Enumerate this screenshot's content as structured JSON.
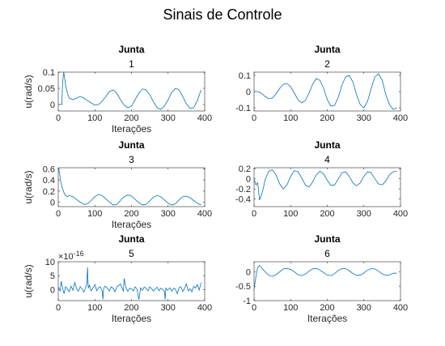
{
  "figure": {
    "title": "Sinais de Controle"
  },
  "chart_data": [
    {
      "type": "line",
      "title": [
        "Junta",
        "1"
      ],
      "xlabel": "Iterações",
      "ylabel": "u(rad/s)",
      "xlim": [
        0,
        400
      ],
      "ylim": [
        -0.02,
        0.1
      ],
      "xticks": [
        "0",
        "100",
        "200",
        "300",
        "400"
      ],
      "yticks": [
        {
          "v": 0,
          "t": "0"
        },
        {
          "v": 0.05,
          "t": "0.05"
        },
        {
          "v": 0.1,
          "t": "0.1"
        }
      ],
      "series": [
        {
          "color": "#0072bd",
          "x": [
            0,
            10,
            12,
            15,
            17,
            20,
            25,
            30,
            40,
            50,
            60,
            70,
            80,
            90,
            100,
            110,
            120,
            130,
            140,
            150,
            160,
            170,
            180,
            190,
            200,
            210,
            220,
            230,
            240,
            250,
            260,
            270,
            280,
            290,
            300,
            310,
            320,
            330,
            340,
            350,
            360,
            370,
            380,
            390
          ],
          "y": [
            0,
            0,
            0.07,
            0.1,
            0.085,
            0.06,
            0.035,
            0.02,
            0.015,
            0.02,
            0.025,
            0.02,
            0.012,
            0.005,
            -0.002,
            0,
            0.01,
            0.025,
            0.04,
            0.045,
            0.035,
            0.015,
            -0.002,
            -0.01,
            -0.005,
            0.015,
            0.035,
            0.048,
            0.045,
            0.03,
            0.008,
            -0.01,
            -0.015,
            -0.005,
            0.015,
            0.038,
            0.05,
            0.045,
            0.025,
            0.002,
            -0.012,
            -0.01,
            0.012,
            0.045
          ]
        }
      ]
    },
    {
      "type": "line",
      "title": [
        "Junta",
        "2"
      ],
      "xlabel": "",
      "ylabel": "",
      "xlim": [
        0,
        400
      ],
      "ylim": [
        -0.12,
        0.12
      ],
      "xticks": [
        "0",
        "100",
        "200",
        "300",
        "400"
      ],
      "yticks": [
        {
          "v": -0.1,
          "t": "-0.1"
        },
        {
          "v": 0,
          "t": "0"
        },
        {
          "v": 0.1,
          "t": "0.1"
        }
      ],
      "series": [
        {
          "color": "#0072bd",
          "x": [
            0,
            10,
            20,
            30,
            40,
            50,
            60,
            70,
            80,
            90,
            100,
            110,
            120,
            130,
            140,
            150,
            160,
            170,
            180,
            190,
            200,
            210,
            220,
            230,
            240,
            250,
            260,
            270,
            280,
            290,
            300,
            310,
            320,
            330,
            340,
            350,
            360,
            370,
            380,
            390
          ],
          "y": [
            0,
            0,
            -0.01,
            -0.03,
            -0.045,
            -0.04,
            -0.015,
            0.02,
            0.045,
            0.05,
            0.03,
            -0.01,
            -0.05,
            -0.07,
            -0.055,
            -0.01,
            0.045,
            0.08,
            0.07,
            0.02,
            -0.05,
            -0.09,
            -0.085,
            -0.035,
            0.04,
            0.09,
            0.1,
            0.06,
            -0.02,
            -0.08,
            -0.1,
            -0.06,
            0.02,
            0.09,
            0.11,
            0.07,
            -0.02,
            -0.08,
            -0.11,
            -0.1
          ]
        }
      ]
    },
    {
      "type": "line",
      "title": [
        "Junta",
        "3"
      ],
      "xlabel": "Iterações",
      "ylabel": "u(rad/s)",
      "xlim": [
        0,
        400
      ],
      "ylim": [
        -0.08,
        0.62
      ],
      "xticks": [
        "0",
        "100",
        "200",
        "300",
        "400"
      ],
      "yticks": [
        {
          "v": 0,
          "t": "0"
        },
        {
          "v": 0.2,
          "t": "0.2"
        },
        {
          "v": 0.4,
          "t": "0.4"
        },
        {
          "v": 0.6,
          "t": "0.6"
        }
      ],
      "series": [
        {
          "color": "#0072bd",
          "x": [
            0,
            3,
            6,
            10,
            15,
            20,
            25,
            30,
            40,
            50,
            60,
            70,
            80,
            90,
            100,
            110,
            120,
            130,
            140,
            150,
            160,
            170,
            180,
            190,
            200,
            210,
            220,
            230,
            240,
            250,
            260,
            270,
            280,
            290,
            300,
            310,
            320,
            330,
            340,
            350,
            360,
            370,
            380,
            390
          ],
          "y": [
            0.6,
            0.55,
            0.4,
            0.28,
            0.18,
            0.12,
            0.1,
            0.12,
            0.1,
            0.05,
            0,
            -0.04,
            -0.03,
            0.03,
            0.1,
            0.14,
            0.12,
            0.06,
            0,
            -0.05,
            -0.04,
            0.03,
            0.1,
            0.13,
            0.11,
            0.05,
            -0.01,
            -0.05,
            -0.04,
            0.02,
            0.09,
            0.12,
            0.1,
            0.04,
            -0.02,
            -0.05,
            -0.03,
            0.04,
            0.1,
            0.11,
            0.08,
            0.03,
            -0.02,
            -0.05
          ]
        }
      ]
    },
    {
      "type": "line",
      "title": [
        "Junta",
        "4"
      ],
      "xlabel": "",
      "ylabel": "",
      "xlim": [
        0,
        400
      ],
      "ylim": [
        -0.55,
        0.22
      ],
      "xticks": [
        "0",
        "100",
        "200",
        "300",
        "400"
      ],
      "yticks": [
        {
          "v": -0.4,
          "t": "-0.4"
        },
        {
          "v": -0.2,
          "t": "-0.2"
        },
        {
          "v": 0,
          "t": "0"
        },
        {
          "v": 0.2,
          "t": "0.2"
        }
      ],
      "series": [
        {
          "color": "#0072bd",
          "x": [
            0,
            5,
            10,
            15,
            20,
            25,
            30,
            40,
            50,
            60,
            70,
            80,
            90,
            100,
            110,
            120,
            130,
            140,
            150,
            160,
            170,
            180,
            190,
            200,
            210,
            220,
            230,
            240,
            250,
            260,
            270,
            280,
            290,
            300,
            310,
            320,
            330,
            340,
            350,
            360,
            370,
            380,
            390
          ],
          "y": [
            0,
            -0.12,
            -0.08,
            -0.42,
            -0.32,
            -0.2,
            -0.02,
            0.15,
            0.18,
            0.08,
            -0.1,
            -0.2,
            -0.12,
            0.05,
            0.16,
            0.14,
            0.02,
            -0.12,
            -0.16,
            -0.06,
            0.08,
            0.15,
            0.1,
            -0.03,
            -0.13,
            -0.12,
            0,
            0.12,
            0.14,
            0.05,
            -0.08,
            -0.14,
            -0.08,
            0.05,
            0.14,
            0.12,
            0,
            -0.1,
            -0.12,
            -0.04,
            0.08,
            0.14,
            0.15
          ]
        }
      ]
    },
    {
      "type": "line",
      "title": [
        "Junta",
        "5"
      ],
      "xlabel": "Iterações",
      "ylabel": "u(rad/s)",
      "exponent_label": "×10",
      "exponent_power": "-16",
      "xlim": [
        0,
        400
      ],
      "ylim": [
        -4,
        10
      ],
      "xticks": [
        "0",
        "100",
        "200",
        "300",
        "400"
      ],
      "yticks": [
        {
          "v": 0,
          "t": "0"
        },
        {
          "v": 5,
          "t": "5"
        },
        {
          "v": 10,
          "t": "10"
        }
      ],
      "series": [
        {
          "color": "#0072bd",
          "x": [
            0,
            5,
            8,
            12,
            16,
            20,
            25,
            30,
            35,
            40,
            45,
            50,
            55,
            60,
            65,
            70,
            75,
            78,
            80,
            82,
            85,
            90,
            95,
            100,
            105,
            110,
            115,
            120,
            122,
            124,
            128,
            135,
            140,
            145,
            150,
            155,
            160,
            165,
            170,
            175,
            178,
            180,
            185,
            190,
            195,
            200,
            205,
            210,
            215,
            220,
            225,
            230,
            235,
            240,
            245,
            250,
            255,
            260,
            265,
            270,
            275,
            280,
            285,
            290,
            292,
            294,
            298,
            305,
            310,
            315,
            320,
            325,
            330,
            335,
            340,
            345,
            350,
            355,
            360,
            365,
            370,
            375,
            380,
            385,
            390
          ],
          "y": [
            1,
            -0.5,
            3,
            0.5,
            -1.5,
            1,
            0.2,
            -0.8,
            1.2,
            -0.3,
            2.5,
            0.4,
            -0.6,
            1,
            0.3,
            -0.9,
            0.8,
            2,
            8,
            0.5,
            1.5,
            -0.5,
            0.6,
            1.8,
            -0.4,
            0.7,
            1,
            -0.6,
            -3.5,
            0.5,
            1.2,
            0.3,
            -0.5,
            1,
            0.4,
            -0.8,
            0.9,
            1.5,
            2,
            0.2,
            -0.6,
            4,
            0.6,
            -0.7,
            0.5,
            0.2,
            -0.5,
            1,
            0.1,
            -3.6,
            0.6,
            -0.3,
            0.9,
            0.4,
            -0.5,
            1,
            0.3,
            -0.6,
            0.2,
            0.8,
            -0.4,
            0.5,
            0.1,
            -0.8,
            -3.6,
            0.5,
            -0.3,
            0.6,
            -0.6,
            0.4,
            0.2,
            -1.5,
            0.6,
            1,
            -0.7,
            0.4,
            2,
            -0.5,
            0.3,
            -0.8,
            1.2,
            0.5,
            1.8,
            -0.2,
            2.5
          ]
        }
      ]
    },
    {
      "type": "line",
      "title": [
        "Junta",
        "6"
      ],
      "xlabel": "Iterações",
      "ylabel": "",
      "xlim": [
        0,
        400
      ],
      "ylim": [
        -1,
        0.35
      ],
      "xticks": [
        "0",
        "100",
        "200",
        "300",
        "400"
      ],
      "yticks": [
        {
          "v": -1,
          "t": "-1"
        },
        {
          "v": -0.5,
          "t": "-0.5"
        },
        {
          "v": 0,
          "t": "0"
        }
      ],
      "series": [
        {
          "color": "#0072bd",
          "x": [
            0,
            3,
            6,
            10,
            15,
            20,
            25,
            30,
            40,
            50,
            60,
            70,
            80,
            90,
            100,
            110,
            120,
            130,
            140,
            150,
            160,
            170,
            180,
            190,
            200,
            210,
            220,
            230,
            240,
            250,
            260,
            270,
            280,
            290,
            300,
            310,
            320,
            330,
            340,
            350,
            360,
            370,
            380,
            390
          ],
          "y": [
            -0.6,
            -0.35,
            -0.1,
            0.15,
            0.22,
            0.15,
            0.08,
            0,
            -0.12,
            -0.16,
            -0.1,
            0,
            0.1,
            0.12,
            0.08,
            0,
            -0.1,
            -0.13,
            -0.08,
            0.02,
            0.1,
            0.12,
            0.06,
            -0.03,
            -0.11,
            -0.13,
            -0.06,
            0.04,
            0.11,
            0.11,
            0.04,
            -0.06,
            -0.12,
            -0.12,
            -0.04,
            0.06,
            0.11,
            0.1,
            0.02,
            -0.07,
            -0.12,
            -0.11,
            -0.05,
            -0.05
          ]
        }
      ]
    }
  ]
}
